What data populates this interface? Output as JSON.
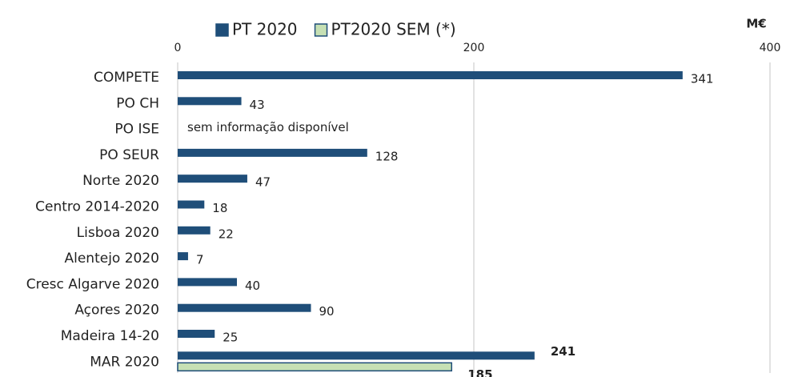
{
  "chart_data": {
    "type": "hbar",
    "unit_label": "M€",
    "categories": [
      "COMPETE",
      "PO CH",
      "PO ISE",
      "PO SEUR",
      "Norte 2020",
      "Centro 2014-2020",
      "Lisboa 2020",
      "Alentejo 2020",
      "Cresc Algarve 2020",
      "Açores 2020",
      "Madeira 14-20",
      "MAR 2020"
    ],
    "series": [
      {
        "name": "PT 2020",
        "color": "#1f4e79",
        "values": [
          341,
          43,
          null,
          128,
          47,
          18,
          22,
          7,
          40,
          90,
          25,
          241
        ]
      },
      {
        "name": "PT2020 SEM (*)",
        "color": "#c6e0b4",
        "values": [
          null,
          null,
          null,
          null,
          null,
          null,
          null,
          null,
          null,
          null,
          null,
          185
        ]
      }
    ],
    "annotation": "sem informação disponível",
    "xlim": [
      0,
      400
    ],
    "xticks": [
      0,
      200,
      400
    ],
    "grid": true
  }
}
